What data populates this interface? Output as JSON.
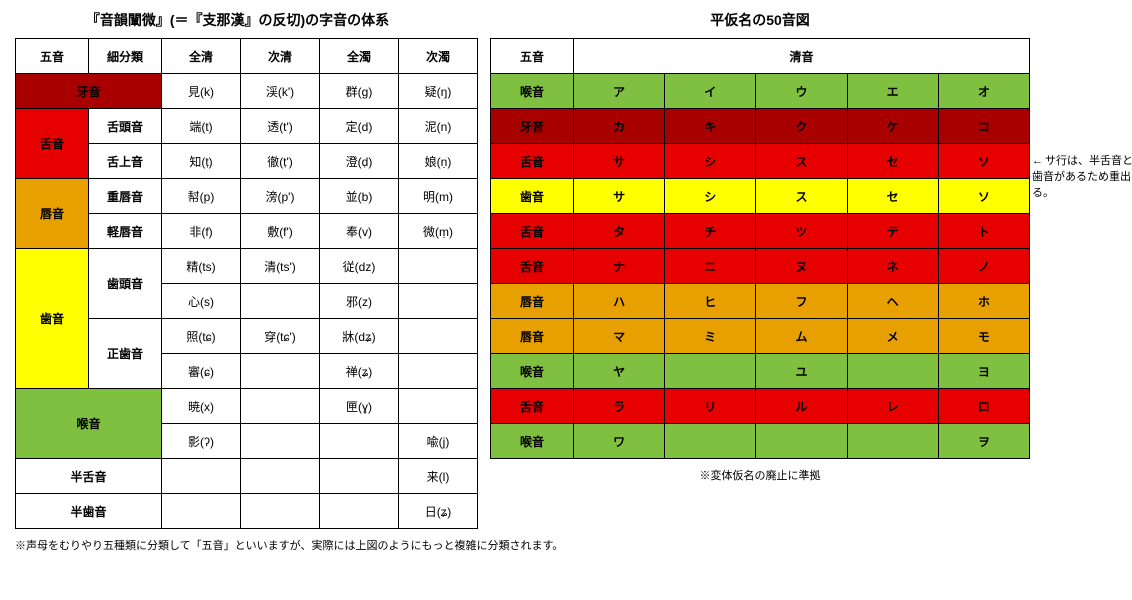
{
  "colors": {
    "darkred": "#a80000",
    "red": "#e60000",
    "orange": "#e8a000",
    "yellow": "#ffff00",
    "green": "#80c040"
  },
  "leftTitle": "『音韻闡微』(＝『支那漢』の反切)の字音の体系",
  "rightTitle": "平仮名の50音図",
  "leftHeaders": [
    "五音",
    "細分類",
    "全清",
    "次清",
    "全濁",
    "次濁"
  ],
  "leftRows": [
    {
      "五音": "牙音",
      "五音span": 1,
      "color": "darkred",
      "細分類": null,
      "cells": [
        "見(k)",
        "渓(k')",
        "群(g)",
        "疑(ŋ)"
      ]
    },
    {
      "五音": "舌音",
      "五音span": 2,
      "color": "red",
      "細分類": "舌頭音",
      "cells": [
        "端(t)",
        "透(t')",
        "定(d)",
        "泥(n)"
      ]
    },
    {
      "細分類": "舌上音",
      "cells": [
        "知(ṭ)",
        "徹(ṭ')",
        "澄(ḍ)",
        "娘(ṇ)"
      ]
    },
    {
      "五音": "唇音",
      "五音span": 2,
      "color": "orange",
      "細分類": "重唇音",
      "cells": [
        "幇(p)",
        "滂(p')",
        "並(b)",
        "明(m)"
      ]
    },
    {
      "細分類": "軽唇音",
      "cells": [
        "非(f)",
        "敷(f')",
        "奉(v)",
        "微(ṃ)"
      ]
    },
    {
      "五音": "歯音",
      "五音span": 4,
      "color": "yellow",
      "細分類": "歯頭音",
      "細分類span": 2,
      "cells": [
        "精(ts)",
        "清(ts')",
        "従(dz)",
        ""
      ]
    },
    {
      "cells": [
        "心(s)",
        "",
        "邪(z)",
        ""
      ]
    },
    {
      "細分類": "正歯音",
      "細分類span": 2,
      "cells": [
        "照(tɕ)",
        "穿(tɕ')",
        "牀(dʑ)",
        ""
      ]
    },
    {
      "cells": [
        "審(ɕ)",
        "",
        "禅(ʑ)",
        ""
      ]
    },
    {
      "五音": "喉音",
      "五音span": 2,
      "color": "green",
      "細分類": null,
      "細分類span": 2,
      "cells": [
        "暁(x)",
        "",
        "匣(ɣ)",
        ""
      ]
    },
    {
      "cells": [
        "影(ʔ)",
        "",
        "",
        "喩(j)"
      ]
    },
    {
      "五音": "半舌音",
      "五音span": 1,
      "細分類": null,
      "cells": [
        "",
        "",
        "",
        "来(l)"
      ]
    },
    {
      "五音": "半歯音",
      "五音span": 1,
      "細分類": null,
      "cells": [
        "",
        "",
        "",
        "日(ʑ)"
      ]
    }
  ],
  "leftNote": "※声母をむりやり五種類に分類して「五音」といいますが、実際には上図のようにもっと複雑に分類されます。",
  "rightHeaders": {
    "col1": "五音",
    "col2": "清音"
  },
  "rightRows": [
    {
      "label": "喉音",
      "color": "green",
      "cells": [
        "ア",
        "イ",
        "ウ",
        "エ",
        "オ"
      ]
    },
    {
      "label": "牙音",
      "color": "darkred",
      "cells": [
        "カ",
        "キ",
        "ク",
        "ケ",
        "コ"
      ]
    },
    {
      "label": "舌音",
      "color": "red",
      "cells": [
        "サ",
        "シ",
        "ス",
        "セ",
        "ソ"
      ]
    },
    {
      "label": "歯音",
      "color": "yellow",
      "cells": [
        "サ",
        "シ",
        "ス",
        "セ",
        "ソ"
      ]
    },
    {
      "label": "舌音",
      "color": "red",
      "cells": [
        "タ",
        "チ",
        "ツ",
        "テ",
        "ト"
      ]
    },
    {
      "label": "舌音",
      "color": "red",
      "cells": [
        "ナ",
        "ニ",
        "ヌ",
        "ネ",
        "ノ"
      ]
    },
    {
      "label": "唇音",
      "color": "orange",
      "cells": [
        "ハ",
        "ヒ",
        "フ",
        "ヘ",
        "ホ"
      ]
    },
    {
      "label": "唇音",
      "color": "orange",
      "cells": [
        "マ",
        "ミ",
        "ム",
        "メ",
        "モ"
      ]
    },
    {
      "label": "喉音",
      "color": "green",
      "cells": [
        "ヤ",
        "",
        "ユ",
        "",
        "ヨ"
      ]
    },
    {
      "label": "舌音",
      "color": "red",
      "cells": [
        "ラ",
        "リ",
        "ル",
        "レ",
        "ロ"
      ]
    },
    {
      "label": "喉音",
      "color": "green",
      "cells": [
        "ワ",
        "",
        "",
        "",
        "ヲ"
      ]
    }
  ],
  "rightArrowNote": "サ行は、半舌音と半歯音があるため重出する。",
  "rightBottomNote": "※変体仮名の廃止に準拠"
}
